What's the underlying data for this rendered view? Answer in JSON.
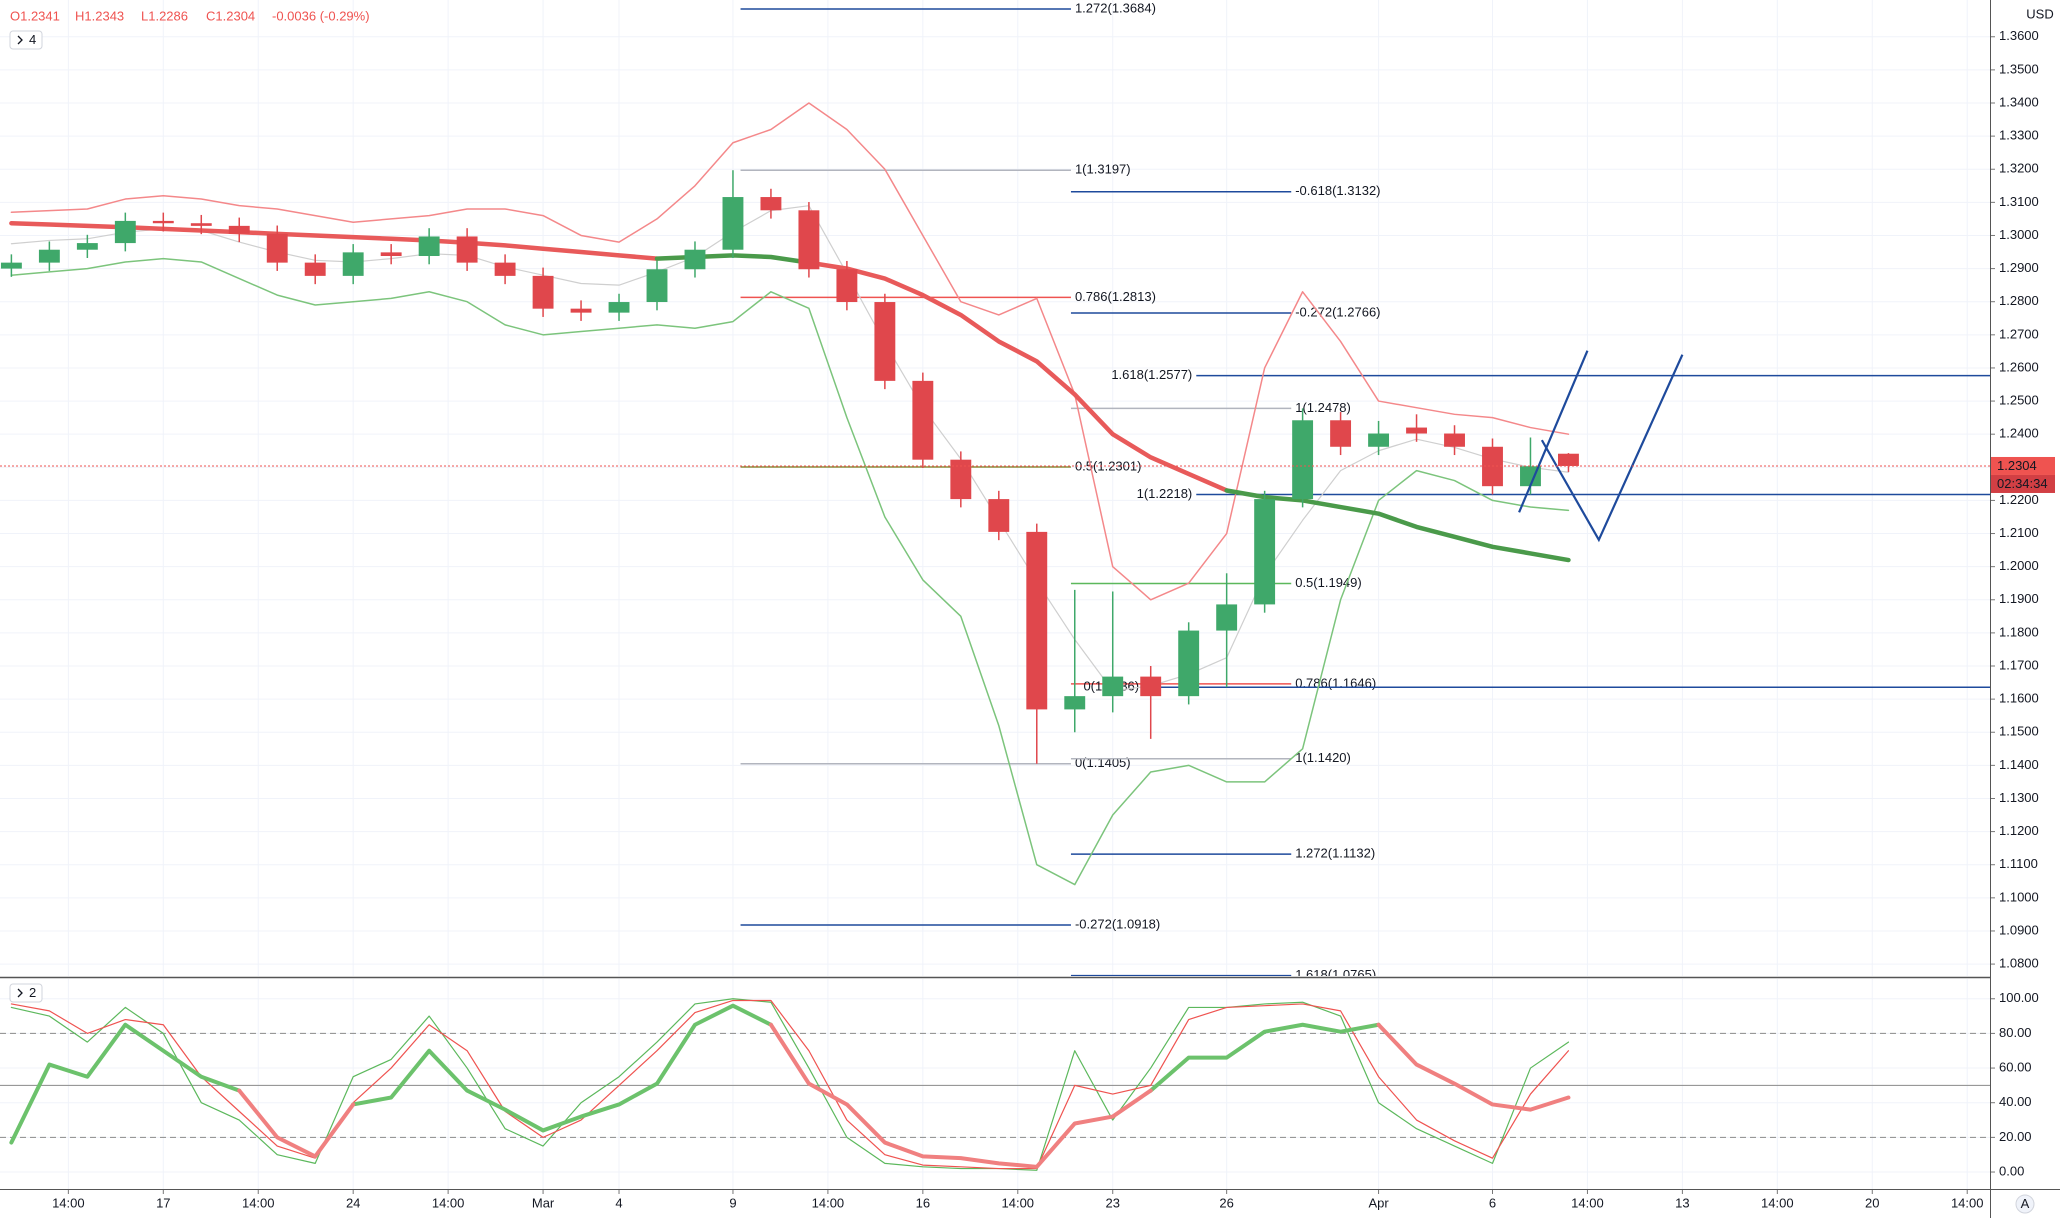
{
  "header": {
    "ohlc": [
      "O1.2341",
      "H1.2343",
      "L1.2286",
      "C1.2304",
      "-0.0036 (-0.29%)"
    ],
    "currency": "USD"
  },
  "controls": {
    "auto": "A"
  },
  "chart_data": [
    {
      "type": "candlestick",
      "indicators": 4,
      "x": [
        -4,
        -3,
        -2,
        -1,
        0,
        1,
        2,
        3,
        4,
        5,
        6,
        7,
        8,
        9,
        10,
        11,
        12,
        13,
        14,
        15,
        16,
        17,
        18,
        19,
        20,
        21,
        22,
        23,
        24,
        25,
        26,
        27,
        28,
        29,
        30,
        31,
        32,
        33,
        34,
        35,
        36,
        37
      ],
      "open": [
        1.29,
        1.2918,
        1.2957,
        1.2977,
        1.3044,
        1.3037,
        1.3029,
        1.3005,
        1.2918,
        1.2878,
        1.2949,
        1.2938,
        1.2997,
        1.2918,
        1.2878,
        1.2779,
        1.2767,
        1.2799,
        1.2898,
        1.2957,
        1.3116,
        1.3076,
        1.2898,
        1.2799,
        1.2561,
        1.2323,
        1.2204,
        1.2105,
        1.1569,
        1.1609,
        1.1668,
        1.1609,
        1.1807,
        1.1886,
        1.2204,
        1.2442,
        1.2362,
        1.242,
        1.2402,
        1.2362,
        1.2243,
        1.2341
      ],
      "high": [
        1.2943,
        1.2982,
        1.3002,
        1.3069,
        1.3069,
        1.3062,
        1.3054,
        1.303,
        1.2943,
        1.2974,
        1.2974,
        1.3022,
        1.3022,
        1.2943,
        1.2903,
        1.2804,
        1.2824,
        1.2923,
        1.2982,
        1.3197,
        1.3141,
        1.3101,
        1.2923,
        1.2824,
        1.2586,
        1.2348,
        1.2229,
        1.213,
        1.193,
        1.1925,
        1.17,
        1.1832,
        1.198,
        1.2229,
        1.2478,
        1.2467,
        1.244,
        1.246,
        1.2427,
        1.2387,
        1.239,
        1.2343
      ],
      "low": [
        1.2875,
        1.2893,
        1.2932,
        1.2952,
        1.3012,
        1.3004,
        1.298,
        1.2893,
        1.2853,
        1.2853,
        1.2913,
        1.2913,
        1.2893,
        1.2853,
        1.2754,
        1.2742,
        1.2742,
        1.2774,
        1.2873,
        1.2932,
        1.3051,
        1.2873,
        1.2774,
        1.2536,
        1.2298,
        1.2179,
        1.208,
        1.1405,
        1.15,
        1.156,
        1.148,
        1.1584,
        1.1636,
        1.1861,
        1.2179,
        1.2337,
        1.2337,
        1.2377,
        1.2337,
        1.2218,
        1.2218,
        1.2286
      ],
      "close": [
        1.2918,
        1.2957,
        1.2977,
        1.3044,
        1.3037,
        1.3029,
        1.3005,
        1.2918,
        1.2878,
        1.2949,
        1.2938,
        1.2997,
        1.2918,
        1.2878,
        1.2779,
        1.2767,
        1.2799,
        1.2898,
        1.2957,
        1.3116,
        1.3076,
        1.2898,
        1.2799,
        1.2561,
        1.2323,
        1.2204,
        1.2105,
        1.1569,
        1.1609,
        1.1668,
        1.1609,
        1.1807,
        1.1886,
        1.2204,
        1.2442,
        1.2362,
        1.2402,
        1.2402,
        1.2362,
        1.2243,
        1.2303,
        1.2304
      ],
      "up_color": "#3fa86a",
      "down_color": "#e0474c",
      "series": [
        {
          "color": "#f4888a",
          "width": 1.5,
          "values": [
            1.307,
            1.3075,
            1.308,
            1.311,
            1.312,
            1.311,
            1.309,
            1.308,
            1.306,
            1.304,
            1.305,
            1.306,
            1.308,
            1.308,
            1.306,
            1.3,
            1.298,
            1.305,
            1.315,
            1.328,
            1.332,
            1.34,
            1.332,
            1.32,
            1.3,
            1.28,
            1.276,
            1.281,
            1.252,
            1.2,
            1.19,
            1.195,
            1.21,
            1.26,
            1.283,
            1.268,
            1.25,
            1.248,
            1.246,
            1.245,
            1.242,
            1.24
          ]
        },
        {
          "color": "#7cc47c",
          "width": 1.5,
          "values": [
            1.288,
            1.289,
            1.29,
            1.292,
            1.293,
            1.292,
            1.287,
            1.282,
            1.279,
            1.28,
            1.281,
            1.283,
            1.28,
            1.273,
            1.27,
            1.271,
            1.272,
            1.273,
            1.272,
            1.274,
            1.283,
            1.278,
            1.245,
            1.215,
            1.196,
            1.185,
            1.152,
            1.11,
            1.104,
            1.125,
            1.138,
            1.14,
            1.135,
            1.135,
            1.145,
            1.19,
            1.22,
            1.229,
            1.226,
            1.22,
            1.218,
            1.217
          ]
        },
        {
          "color": "#cfcfcf",
          "width": 1.2,
          "values": [
            1.2975,
            1.2985,
            1.299,
            1.301,
            1.302,
            1.3015,
            1.298,
            1.295,
            1.2925,
            1.292,
            1.293,
            1.2945,
            1.294,
            1.2905,
            1.288,
            1.2855,
            1.285,
            1.289,
            1.2935,
            1.301,
            1.3075,
            1.309,
            1.2885,
            1.2675,
            1.248,
            1.2325,
            1.214,
            1.1955,
            1.178,
            1.1625,
            1.164,
            1.1675,
            1.1725,
            1.1975,
            1.214,
            1.229,
            1.235,
            1.2385,
            1.236,
            1.2325,
            1.23,
            1.2285
          ]
        },
        {
          "color": "#e85a5a",
          "width": 4.5,
          "values": [
            1.3037,
            1.3033,
            1.3029,
            1.3025,
            1.302,
            1.3015,
            1.301,
            1.3005,
            1.3,
            1.2995,
            1.299,
            1.2985,
            1.2978,
            1.297,
            1.296,
            1.295,
            1.294,
            1.293,
            null,
            null,
            null,
            1.2918,
            1.29,
            1.287,
            1.282,
            1.276,
            1.268,
            1.262,
            1.252,
            1.24,
            1.233,
            1.228,
            1.223,
            null,
            null,
            null,
            null,
            null,
            null,
            null,
            null,
            null
          ]
        },
        {
          "color": "#4a9a4a",
          "width": 4.5,
          "values": [
            null,
            null,
            null,
            null,
            null,
            null,
            null,
            null,
            null,
            null,
            null,
            null,
            null,
            null,
            null,
            null,
            null,
            1.293,
            1.2935,
            1.294,
            1.2935,
            1.2918,
            null,
            null,
            null,
            null,
            null,
            null,
            null,
            null,
            null,
            null,
            1.223,
            1.221,
            1.22,
            1.218,
            1.216,
            1.212,
            1.209,
            1.206,
            1.204,
            1.202
          ]
        }
      ],
      "levels": [
        {
          "label": "1.272(1.3684)",
          "value": 1.3684,
          "x": [
            15.2,
            23.9
          ],
          "color": "#1e4a9c"
        },
        {
          "label": "1(1.3197)",
          "value": 1.3197,
          "x": [
            15.2,
            23.9
          ],
          "color": "#b2b5be"
        },
        {
          "label": "-0.618(1.3132)",
          "value": 1.3132,
          "x": [
            23.9,
            29.7
          ],
          "color": "#1e4a9c"
        },
        {
          "label": "0.786(1.2813)",
          "value": 1.2813,
          "x": [
            15.2,
            23.9
          ],
          "color": "#ef5350"
        },
        {
          "label": "-0.272(1.2766)",
          "value": 1.2766,
          "x": [
            23.9,
            29.7
          ],
          "color": "#1e4a9c"
        },
        {
          "label": "1.618(1.2577)",
          "value": 1.2577,
          "x": [
            27.2,
            48.1
          ],
          "color": "#1e4a9c"
        },
        {
          "label": "1(1.2478)",
          "value": 1.2478,
          "x": [
            23.9,
            29.7
          ],
          "color": "#b2b5be"
        },
        {
          "label": "0.5(1.2301)",
          "value": 1.2301,
          "x": [
            15.2,
            23.9
          ],
          "color": "#8c8c3c"
        },
        {
          "label": "1(1.2218)",
          "value": 1.2218,
          "x": [
            27.2,
            48.1
          ],
          "color": "#1e4a9c"
        },
        {
          "label": "0.5(1.1949)",
          "value": 1.1949,
          "x": [
            23.9,
            29.7
          ],
          "color": "#5cb85c"
        },
        {
          "label": "0.786(1.1646)",
          "value": 1.1646,
          "x": [
            23.9,
            29.7
          ],
          "color": "#ef5350"
        },
        {
          "label": "0(1.1636)",
          "value": 1.1636,
          "x": [
            25.8,
            48.1
          ],
          "color": "#1e4a9c"
        },
        {
          "label": "0(1.1405)",
          "value": 1.1405,
          "x": [
            15.2,
            23.9
          ],
          "color": "#b2b5be"
        },
        {
          "label": "1(1.1420)",
          "value": 1.142,
          "x": [
            23.9,
            29.7
          ],
          "color": "#b2b5be"
        },
        {
          "label": "1.272(1.1132)",
          "value": 1.1132,
          "x": [
            23.9,
            29.7
          ],
          "color": "#1e4a9c"
        },
        {
          "label": "-0.272(1.0918)",
          "value": 1.0918,
          "x": [
            15.2,
            23.9
          ],
          "color": "#1e4a9c"
        },
        {
          "label": "1.618(1.0765)",
          "value": 1.0765,
          "x": [
            23.9,
            29.7
          ],
          "color": "#1e4a9c"
        }
      ],
      "drawings": [
        {
          "color": "#1e4a9c",
          "x": [
            35.7,
            37.5
          ],
          "y": [
            1.2164,
            1.2652
          ]
        },
        {
          "color": "#1e4a9c",
          "x": [
            36.3,
            37.8,
            40.0
          ],
          "y": [
            1.2382,
            1.2081,
            1.264
          ]
        }
      ],
      "last_price": 1.2304,
      "countdown": "02:34:34",
      "xlim": [
        -4.3,
        48.1
      ],
      "ylim": [
        1.0764,
        1.3711
      ],
      "grid": true,
      "yticks": [
        {
          "value": 1.08,
          "label": "1.0800"
        },
        {
          "value": 1.09,
          "label": "1.0900"
        },
        {
          "value": 1.1,
          "label": "1.1000"
        },
        {
          "value": 1.11,
          "label": "1.1100"
        },
        {
          "value": 1.12,
          "label": "1.1200"
        },
        {
          "value": 1.13,
          "label": "1.1300"
        },
        {
          "value": 1.14,
          "label": "1.1400"
        },
        {
          "value": 1.15,
          "label": "1.1500"
        },
        {
          "value": 1.16,
          "label": "1.1600"
        },
        {
          "value": 1.17,
          "label": "1.1700"
        },
        {
          "value": 1.18,
          "label": "1.1800"
        },
        {
          "value": 1.19,
          "label": "1.1900"
        },
        {
          "value": 1.2,
          "label": "1.2000"
        },
        {
          "value": 1.21,
          "label": "1.2100"
        },
        {
          "value": 1.22,
          "label": "1.2200"
        },
        {
          "value": 1.23,
          "label": "1.2300"
        },
        {
          "value": 1.24,
          "label": "1.2400"
        },
        {
          "value": 1.25,
          "label": "1.2500"
        },
        {
          "value": 1.26,
          "label": "1.2600"
        },
        {
          "value": 1.27,
          "label": "1.2700"
        },
        {
          "value": 1.28,
          "label": "1.2800"
        },
        {
          "value": 1.29,
          "label": "1.2900"
        },
        {
          "value": 1.3,
          "label": "1.3000"
        },
        {
          "value": 1.31,
          "label": "1.3100"
        },
        {
          "value": 1.32,
          "label": "1.3200"
        },
        {
          "value": 1.33,
          "label": "1.3300"
        },
        {
          "value": 1.34,
          "label": "1.3400"
        },
        {
          "value": 1.35,
          "label": "1.3500"
        },
        {
          "value": 1.36,
          "label": "1.3600"
        }
      ]
    },
    {
      "type": "line",
      "indicators": 2,
      "x": [
        -4,
        -3,
        -2,
        -1,
        0,
        1,
        2,
        3,
        4,
        5,
        6,
        7,
        8,
        9,
        10,
        11,
        12,
        13,
        14,
        15,
        16,
        17,
        18,
        19,
        20,
        21,
        22,
        23,
        24,
        25,
        26,
        27,
        28,
        29,
        30,
        31,
        32,
        33,
        34,
        35,
        36,
        37
      ],
      "series": [
        {
          "color": "#5cb85c",
          "width": 1.2,
          "values": [
            95,
            90,
            75,
            95,
            80,
            40,
            30,
            10,
            5,
            55,
            65,
            90,
            60,
            25,
            15,
            40,
            55,
            75,
            97,
            100,
            98,
            60,
            20,
            5,
            3,
            2,
            2,
            1,
            70,
            30,
            60,
            95,
            95,
            97,
            98,
            90,
            40,
            25,
            15,
            5,
            60,
            75
          ]
        },
        {
          "color": "#ef5350",
          "width": 1.2,
          "values": [
            97,
            93,
            80,
            88,
            85,
            55,
            35,
            15,
            8,
            40,
            60,
            85,
            70,
            35,
            20,
            30,
            50,
            70,
            92,
            99,
            99,
            70,
            30,
            10,
            4,
            3,
            2,
            2,
            50,
            45,
            50,
            88,
            95,
            96,
            97,
            93,
            55,
            30,
            18,
            8,
            45,
            70
          ]
        },
        {
          "color": "#6cc26c",
          "width": 4,
          "values": [
            17,
            62,
            55,
            85,
            70,
            55,
            47,
            null,
            null,
            39,
            43,
            70,
            47,
            36,
            24,
            32,
            39,
            51,
            85,
            96,
            85,
            null,
            null,
            null,
            null,
            null,
            null,
            null,
            null,
            null,
            47,
            66,
            66,
            81,
            85,
            81,
            85,
            null,
            null,
            null,
            null,
            null
          ]
        },
        {
          "color": "#f08080",
          "width": 4,
          "values": [
            null,
            null,
            null,
            null,
            null,
            null,
            47,
            20,
            9,
            39,
            null,
            null,
            null,
            null,
            null,
            null,
            null,
            null,
            null,
            null,
            85,
            51,
            39,
            17,
            9,
            8,
            5,
            3,
            28,
            32,
            47,
            null,
            null,
            null,
            null,
            null,
            85,
            62,
            51,
            39,
            36,
            43
          ]
        }
      ],
      "hlines": [
        {
          "value": 80,
          "dashed": true
        },
        {
          "value": 50,
          "dashed": false
        },
        {
          "value": 20,
          "dashed": true
        }
      ],
      "xlim": [
        -4.3,
        48.1
      ],
      "ylim": [
        -9.8,
        111.4
      ],
      "grid": true,
      "yticks": [
        {
          "value": 0,
          "label": "0.00"
        },
        {
          "value": 20,
          "label": "20.00"
        },
        {
          "value": 40,
          "label": "40.00"
        },
        {
          "value": 60,
          "label": "60.00"
        },
        {
          "value": 80,
          "label": "80.00"
        },
        {
          "value": 100,
          "label": "100.00"
        }
      ],
      "xticks": [
        {
          "value": -2.5,
          "label": "14:00"
        },
        {
          "value": 0,
          "label": "17"
        },
        {
          "value": 2.5,
          "label": "14:00"
        },
        {
          "value": 5,
          "label": "24"
        },
        {
          "value": 7.5,
          "label": "14:00"
        },
        {
          "value": 10,
          "label": "Mar"
        },
        {
          "value": 12,
          "label": "4"
        },
        {
          "value": 15,
          "label": "9"
        },
        {
          "value": 17.5,
          "label": "14:00"
        },
        {
          "value": 20,
          "label": "16"
        },
        {
          "value": 22.5,
          "label": "14:00"
        },
        {
          "value": 25,
          "label": "23"
        },
        {
          "value": 28,
          "label": "26"
        },
        {
          "value": 32,
          "label": "Apr"
        },
        {
          "value": 35,
          "label": "6"
        },
        {
          "value": 37.5,
          "label": "14:00"
        },
        {
          "value": 40,
          "label": "13"
        },
        {
          "value": 42.5,
          "label": "14:00"
        },
        {
          "value": 45,
          "label": "20"
        },
        {
          "value": 47.5,
          "label": "14:00"
        }
      ]
    }
  ]
}
